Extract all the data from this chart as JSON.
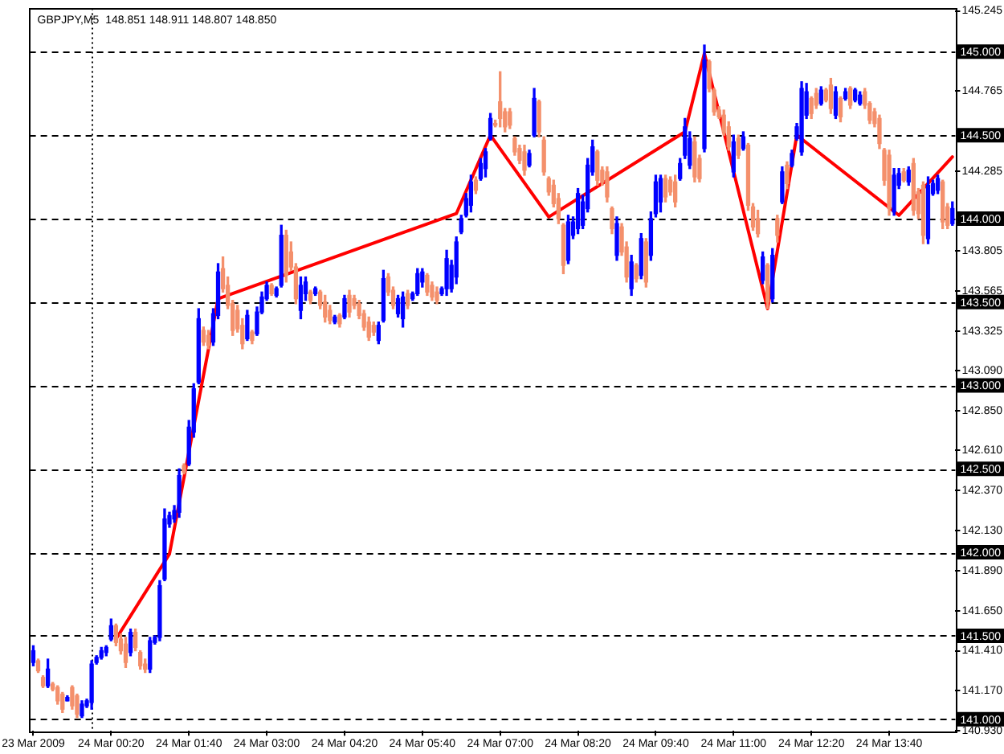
{
  "chart_data": {
    "type": "candlestick",
    "title": "GBPJPY,M5  148.851 148.911 148.807 148.850",
    "x": [
      "2009-03-23T23:00",
      "2009-03-23T23:05",
      "2009-03-23T23:10",
      "2009-03-23T23:15",
      "2009-03-23T23:20",
      "2009-03-23T23:25",
      "2009-03-23T23:30",
      "2009-03-23T23:35",
      "2009-03-23T23:40",
      "2009-03-23T23:45",
      "2009-03-23T23:50",
      "2009-03-23T23:55",
      "2009-03-24T00:00",
      "2009-03-24T00:05",
      "2009-03-24T00:10",
      "2009-03-24T00:15",
      "2009-03-24T00:20",
      "2009-03-24T00:25",
      "2009-03-24T00:30",
      "2009-03-24T00:35",
      "2009-03-24T00:40",
      "2009-03-24T00:45",
      "2009-03-24T00:50",
      "2009-03-24T00:55",
      "2009-03-24T01:00",
      "2009-03-24T01:05",
      "2009-03-24T01:10",
      "2009-03-24T01:15",
      "2009-03-24T01:20",
      "2009-03-24T01:25",
      "2009-03-24T01:30",
      "2009-03-24T01:35",
      "2009-03-24T01:40",
      "2009-03-24T01:45",
      "2009-03-24T01:50",
      "2009-03-24T01:55",
      "2009-03-24T02:00",
      "2009-03-24T02:05",
      "2009-03-24T02:10",
      "2009-03-24T02:15",
      "2009-03-24T02:20",
      "2009-03-24T02:25",
      "2009-03-24T02:30",
      "2009-03-24T02:35",
      "2009-03-24T02:40",
      "2009-03-24T02:45",
      "2009-03-24T02:50",
      "2009-03-24T02:55",
      "2009-03-24T03:00",
      "2009-03-24T03:05",
      "2009-03-24T03:10",
      "2009-03-24T03:15",
      "2009-03-24T03:20",
      "2009-03-24T03:25",
      "2009-03-24T03:30",
      "2009-03-24T03:35",
      "2009-03-24T03:40",
      "2009-03-24T03:45",
      "2009-03-24T03:50",
      "2009-03-24T03:55",
      "2009-03-24T04:00",
      "2009-03-24T04:05",
      "2009-03-24T04:10",
      "2009-03-24T04:15",
      "2009-03-24T04:20",
      "2009-03-24T04:25",
      "2009-03-24T04:30",
      "2009-03-24T04:35",
      "2009-03-24T04:40",
      "2009-03-24T04:45",
      "2009-03-24T04:50",
      "2009-03-24T04:55",
      "2009-03-24T05:00",
      "2009-03-24T05:05",
      "2009-03-24T05:10",
      "2009-03-24T05:15",
      "2009-03-24T05:20",
      "2009-03-24T05:25",
      "2009-03-24T05:30",
      "2009-03-24T05:35",
      "2009-03-24T05:40",
      "2009-03-24T05:45",
      "2009-03-24T05:50",
      "2009-03-24T05:55",
      "2009-03-24T06:00",
      "2009-03-24T06:05",
      "2009-03-24T06:10",
      "2009-03-24T06:15",
      "2009-03-24T06:20",
      "2009-03-24T06:25",
      "2009-03-24T06:30",
      "2009-03-24T06:35",
      "2009-03-24T06:40",
      "2009-03-24T06:45",
      "2009-03-24T06:50",
      "2009-03-24T06:55",
      "2009-03-24T07:00",
      "2009-03-24T07:05",
      "2009-03-24T07:10",
      "2009-03-24T07:15",
      "2009-03-24T07:20",
      "2009-03-24T07:25",
      "2009-03-24T07:30",
      "2009-03-24T07:35",
      "2009-03-24T07:40",
      "2009-03-24T07:45",
      "2009-03-24T07:50",
      "2009-03-24T07:55",
      "2009-03-24T08:00",
      "2009-03-24T08:05",
      "2009-03-24T08:10",
      "2009-03-24T08:15",
      "2009-03-24T08:20",
      "2009-03-24T08:25",
      "2009-03-24T08:30",
      "2009-03-24T08:35",
      "2009-03-24T08:40",
      "2009-03-24T08:45",
      "2009-03-24T08:50",
      "2009-03-24T08:55",
      "2009-03-24T09:00",
      "2009-03-24T09:05",
      "2009-03-24T09:10",
      "2009-03-24T09:15",
      "2009-03-24T09:20",
      "2009-03-24T09:25",
      "2009-03-24T09:30",
      "2009-03-24T09:35",
      "2009-03-24T09:40",
      "2009-03-24T09:45",
      "2009-03-24T09:50",
      "2009-03-24T09:55",
      "2009-03-24T10:00",
      "2009-03-24T10:05",
      "2009-03-24T10:10",
      "2009-03-24T10:15",
      "2009-03-24T10:20",
      "2009-03-24T10:25",
      "2009-03-24T10:30",
      "2009-03-24T10:35",
      "2009-03-24T10:40",
      "2009-03-24T10:45",
      "2009-03-24T10:50",
      "2009-03-24T10:55",
      "2009-03-24T11:00",
      "2009-03-24T11:05",
      "2009-03-24T11:10",
      "2009-03-24T11:15",
      "2009-03-24T11:20",
      "2009-03-24T11:25",
      "2009-03-24T11:30",
      "2009-03-24T11:35",
      "2009-03-24T11:40",
      "2009-03-24T11:45",
      "2009-03-24T11:50",
      "2009-03-24T11:55",
      "2009-03-24T12:00",
      "2009-03-24T12:05",
      "2009-03-24T12:10",
      "2009-03-24T12:15",
      "2009-03-24T12:20",
      "2009-03-24T12:25",
      "2009-03-24T12:30",
      "2009-03-24T12:35",
      "2009-03-24T12:40",
      "2009-03-24T12:45",
      "2009-03-24T12:50",
      "2009-03-24T12:55",
      "2009-03-24T13:00",
      "2009-03-24T13:05",
      "2009-03-24T13:10",
      "2009-03-24T13:15",
      "2009-03-24T13:20",
      "2009-03-24T13:25",
      "2009-03-24T13:30",
      "2009-03-24T13:35",
      "2009-03-24T13:40",
      "2009-03-24T13:45",
      "2009-03-24T13:50",
      "2009-03-24T13:55",
      "2009-03-24T14:00",
      "2009-03-24T14:05",
      "2009-03-24T14:10",
      "2009-03-24T14:15",
      "2009-03-24T14:20",
      "2009-03-24T14:25",
      "2009-03-24T14:30",
      "2009-03-24T14:35",
      "2009-03-24T14:40",
      "2009-03-24T14:45"
    ],
    "ohlc": [
      [
        141.34,
        141.44,
        141.32,
        141.41
      ],
      [
        141.35,
        141.36,
        141.28,
        141.29
      ],
      [
        141.25,
        141.26,
        141.19,
        141.2
      ],
      [
        141.2,
        141.36,
        141.19,
        141.3
      ],
      [
        141.21,
        141.22,
        141.17,
        141.18
      ],
      [
        141.19,
        141.2,
        141.09,
        141.11
      ],
      [
        141.15,
        141.16,
        141.04,
        141.06
      ],
      [
        141.11,
        141.14,
        141.11,
        141.13
      ],
      [
        141.19,
        141.2,
        141.06,
        141.08
      ],
      [
        141.14,
        141.15,
        141.01,
        141.03
      ],
      [
        141.02,
        141.11,
        141.01,
        141.09
      ],
      [
        141.08,
        141.12,
        141.07,
        141.11
      ],
      [
        141.1,
        141.35,
        141.06,
        141.33
      ],
      [
        141.34,
        141.38,
        141.33,
        141.37
      ],
      [
        141.37,
        141.43,
        141.36,
        141.41
      ],
      [
        141.4,
        141.44,
        141.38,
        141.43
      ],
      [
        141.48,
        141.6,
        141.47,
        141.56
      ],
      [
        141.56,
        141.57,
        141.44,
        141.46
      ],
      [
        141.48,
        141.51,
        141.39,
        141.41
      ],
      [
        141.45,
        141.49,
        141.31,
        141.34
      ],
      [
        141.4,
        141.54,
        141.38,
        141.52
      ],
      [
        141.52,
        141.54,
        141.41,
        141.43
      ],
      [
        141.4,
        141.41,
        141.3,
        141.32
      ],
      [
        141.33,
        141.36,
        141.28,
        141.3
      ],
      [
        141.3,
        141.49,
        141.28,
        141.47
      ],
      [
        141.46,
        141.5,
        141.45,
        141.49
      ],
      [
        141.49,
        141.83,
        141.47,
        141.8
      ],
      [
        141.84,
        142.26,
        141.83,
        142.2
      ],
      [
        142.17,
        142.24,
        142.15,
        142.22
      ],
      [
        142.2,
        142.28,
        142.18,
        142.25
      ],
      [
        142.24,
        142.5,
        142.21,
        142.46
      ],
      [
        142.52,
        142.53,
        142.47,
        142.48
      ],
      [
        142.53,
        142.79,
        142.52,
        142.75
      ],
      [
        142.72,
        143.01,
        142.69,
        142.98
      ],
      [
        143.02,
        143.46,
        143.01,
        143.4
      ],
      [
        143.33,
        143.35,
        143.24,
        143.26
      ],
      [
        143.3,
        143.33,
        143.22,
        143.24
      ],
      [
        143.26,
        143.46,
        143.24,
        143.43
      ],
      [
        143.42,
        143.73,
        143.4,
        143.68
      ],
      [
        143.7,
        143.77,
        143.56,
        143.58
      ],
      [
        143.6,
        143.65,
        143.46,
        143.48
      ],
      [
        143.49,
        143.51,
        143.3,
        143.33
      ],
      [
        143.45,
        143.48,
        143.32,
        143.34
      ],
      [
        143.36,
        143.4,
        143.22,
        143.25
      ],
      [
        143.28,
        143.45,
        143.27,
        143.42
      ],
      [
        143.32,
        143.33,
        143.25,
        143.27
      ],
      [
        143.31,
        143.47,
        143.3,
        143.44
      ],
      [
        143.44,
        143.56,
        143.43,
        143.53
      ],
      [
        143.52,
        143.62,
        143.51,
        143.6
      ],
      [
        143.6,
        143.61,
        143.54,
        143.55
      ],
      [
        143.54,
        143.59,
        143.53,
        143.58
      ],
      [
        143.6,
        143.96,
        143.59,
        143.9
      ],
      [
        143.9,
        143.93,
        143.62,
        143.66
      ],
      [
        143.8,
        143.86,
        143.69,
        143.71
      ],
      [
        143.71,
        143.73,
        143.49,
        143.52
      ],
      [
        143.45,
        143.65,
        143.4,
        143.6
      ],
      [
        143.55,
        143.65,
        143.51,
        143.62
      ],
      [
        143.56,
        143.57,
        143.49,
        143.51
      ],
      [
        143.55,
        143.59,
        143.54,
        143.58
      ],
      [
        143.56,
        143.57,
        143.46,
        143.48
      ],
      [
        143.5,
        143.54,
        143.38,
        143.41
      ],
      [
        143.45,
        143.48,
        143.37,
        143.39
      ],
      [
        143.38,
        143.42,
        143.37,
        143.41
      ],
      [
        143.42,
        143.43,
        143.35,
        143.37
      ],
      [
        143.41,
        143.54,
        143.4,
        143.52
      ],
      [
        143.54,
        143.57,
        143.41,
        143.44
      ],
      [
        143.52,
        143.54,
        143.46,
        143.48
      ],
      [
        143.49,
        143.51,
        143.4,
        143.42
      ],
      [
        143.43,
        143.45,
        143.33,
        143.35
      ],
      [
        143.38,
        143.41,
        143.27,
        143.29
      ],
      [
        143.36,
        143.38,
        143.3,
        143.32
      ],
      [
        143.27,
        143.38,
        143.25,
        143.36
      ],
      [
        143.39,
        143.69,
        143.38,
        143.64
      ],
      [
        143.65,
        143.67,
        143.54,
        143.56
      ],
      [
        143.57,
        143.59,
        143.46,
        143.48
      ],
      [
        143.43,
        143.54,
        143.41,
        143.52
      ],
      [
        143.4,
        143.56,
        143.35,
        143.53
      ],
      [
        143.55,
        143.57,
        143.46,
        143.48
      ],
      [
        143.52,
        143.56,
        143.51,
        143.55
      ],
      [
        143.55,
        143.7,
        143.54,
        143.67
      ],
      [
        143.62,
        143.7,
        143.59,
        143.68
      ],
      [
        143.66,
        143.67,
        143.54,
        143.56
      ],
      [
        143.6,
        143.62,
        143.51,
        143.53
      ],
      [
        143.56,
        143.59,
        143.49,
        143.51
      ],
      [
        143.55,
        143.59,
        143.54,
        143.58
      ],
      [
        143.58,
        143.81,
        143.54,
        143.76
      ],
      [
        143.58,
        143.75,
        143.56,
        143.72
      ],
      [
        143.65,
        143.89,
        143.61,
        143.86
      ],
      [
        143.92,
        144.02,
        143.91,
        144.0
      ],
      [
        144.02,
        144.15,
        144.01,
        144.12
      ],
      [
        144.08,
        144.26,
        144.04,
        144.22
      ],
      [
        144.23,
        144.25,
        144.15,
        144.17
      ],
      [
        144.24,
        144.36,
        144.23,
        144.33
      ],
      [
        144.3,
        144.42,
        144.25,
        144.4
      ],
      [
        144.48,
        144.63,
        144.47,
        144.6
      ],
      [
        144.57,
        144.59,
        144.55,
        144.56
      ],
      [
        144.7,
        144.88,
        144.55,
        144.6
      ],
      [
        144.64,
        144.66,
        144.52,
        144.55
      ],
      [
        144.64,
        144.66,
        144.54,
        144.56
      ],
      [
        144.48,
        144.49,
        144.38,
        144.4
      ],
      [
        144.42,
        144.44,
        144.33,
        144.35
      ],
      [
        144.4,
        144.44,
        144.26,
        144.29
      ],
      [
        144.32,
        144.41,
        144.31,
        144.39
      ],
      [
        144.5,
        144.78,
        144.49,
        144.72
      ],
      [
        144.7,
        144.71,
        144.49,
        144.52
      ],
      [
        144.47,
        144.49,
        144.26,
        144.28
      ],
      [
        144.24,
        144.25,
        144.14,
        144.16
      ],
      [
        144.2,
        144.23,
        144.07,
        144.09
      ],
      [
        144.12,
        144.15,
        143.97,
        144.0
      ],
      [
        143.96,
        143.97,
        143.67,
        143.72
      ],
      [
        143.75,
        144.02,
        143.73,
        143.98
      ],
      [
        143.9,
        144.01,
        143.88,
        143.98
      ],
      [
        143.94,
        144.18,
        143.91,
        144.15
      ],
      [
        143.96,
        144.14,
        143.94,
        144.1
      ],
      [
        144.06,
        144.36,
        144.04,
        144.32
      ],
      [
        144.28,
        144.47,
        144.26,
        144.43
      ],
      [
        144.4,
        144.41,
        144.2,
        144.23
      ],
      [
        144.29,
        144.31,
        144.2,
        144.22
      ],
      [
        144.28,
        144.31,
        144.1,
        144.13
      ],
      [
        144.06,
        144.07,
        143.91,
        143.94
      ],
      [
        143.78,
        144.01,
        143.75,
        143.97
      ],
      [
        143.95,
        143.97,
        143.78,
        143.8
      ],
      [
        143.83,
        143.86,
        143.62,
        143.65
      ],
      [
        143.58,
        143.78,
        143.54,
        143.74
      ],
      [
        143.72,
        143.73,
        143.62,
        143.64
      ],
      [
        143.66,
        143.91,
        143.64,
        143.88
      ],
      [
        143.86,
        143.88,
        143.59,
        143.62
      ],
      [
        143.78,
        144.04,
        143.75,
        144.0
      ],
      [
        144.03,
        144.26,
        144.01,
        144.22
      ],
      [
        144.1,
        144.26,
        144.04,
        144.24
      ],
      [
        144.24,
        144.26,
        144.1,
        144.13
      ],
      [
        144.23,
        144.25,
        144.14,
        144.16
      ],
      [
        144.22,
        144.26,
        144.07,
        144.1
      ],
      [
        144.24,
        144.36,
        144.23,
        144.33
      ],
      [
        144.38,
        144.6,
        144.36,
        144.55
      ],
      [
        144.32,
        144.52,
        144.3,
        144.48
      ],
      [
        144.46,
        144.49,
        144.22,
        144.25
      ],
      [
        144.36,
        144.38,
        144.22,
        144.24
      ],
      [
        144.42,
        145.04,
        144.4,
        144.95
      ],
      [
        144.94,
        144.95,
        144.76,
        144.78
      ],
      [
        144.77,
        144.78,
        144.62,
        144.64
      ],
      [
        144.65,
        144.67,
        144.6,
        144.61
      ],
      [
        144.62,
        144.65,
        144.5,
        144.52
      ],
      [
        144.55,
        144.58,
        144.41,
        144.43
      ],
      [
        144.28,
        144.5,
        144.25,
        144.46
      ],
      [
        144.48,
        144.5,
        144.36,
        144.38
      ],
      [
        144.42,
        144.52,
        144.41,
        144.49
      ],
      [
        144.44,
        144.45,
        144.05,
        144.08
      ],
      [
        144.07,
        144.09,
        143.93,
        143.95
      ],
      [
        144.0,
        144.05,
        143.89,
        143.91
      ],
      [
        143.63,
        143.8,
        143.61,
        143.77
      ],
      [
        143.72,
        143.73,
        143.46,
        143.5
      ],
      [
        143.52,
        143.82,
        143.5,
        143.78
      ],
      [
        144.0,
        144.02,
        143.86,
        143.9
      ],
      [
        144.1,
        144.31,
        144.09,
        144.28
      ],
      [
        144.32,
        144.34,
        144.18,
        144.21
      ],
      [
        144.32,
        144.41,
        144.31,
        144.39
      ],
      [
        144.48,
        144.57,
        144.47,
        144.55
      ],
      [
        144.4,
        144.82,
        144.38,
        144.78
      ],
      [
        144.62,
        144.81,
        144.6,
        144.76
      ],
      [
        144.72,
        144.73,
        144.6,
        144.63
      ],
      [
        144.75,
        144.78,
        144.66,
        144.68
      ],
      [
        144.69,
        144.79,
        144.68,
        144.77
      ],
      [
        144.77,
        144.78,
        144.7,
        144.71
      ],
      [
        144.8,
        144.84,
        144.63,
        144.66
      ],
      [
        144.62,
        144.79,
        144.6,
        144.76
      ],
      [
        144.72,
        144.73,
        144.58,
        144.61
      ],
      [
        144.72,
        144.78,
        144.71,
        144.76
      ],
      [
        144.78,
        144.79,
        144.66,
        144.68
      ],
      [
        144.71,
        144.78,
        144.7,
        144.77
      ],
      [
        144.69,
        144.76,
        144.68,
        144.74
      ],
      [
        144.76,
        144.78,
        144.66,
        144.68
      ],
      [
        144.69,
        144.7,
        144.57,
        144.59
      ],
      [
        144.64,
        144.66,
        144.55,
        144.57
      ],
      [
        144.6,
        144.62,
        144.42,
        144.45
      ],
      [
        144.41,
        144.42,
        144.2,
        144.23
      ],
      [
        144.38,
        144.41,
        144.02,
        144.06
      ],
      [
        144.04,
        144.3,
        144.02,
        144.26
      ],
      [
        144.2,
        144.3,
        144.18,
        144.27
      ],
      [
        144.28,
        144.3,
        144.22,
        144.23
      ],
      [
        144.22,
        144.31,
        144.2,
        144.29
      ],
      [
        144.33,
        144.36,
        144.02,
        144.05
      ],
      [
        144.16,
        144.18,
        144.0,
        144.03
      ],
      [
        144.2,
        144.22,
        143.85,
        143.9
      ],
      [
        143.88,
        144.25,
        143.85,
        144.2
      ],
      [
        144.15,
        144.23,
        144.14,
        144.21
      ],
      [
        144.17,
        144.26,
        144.15,
        144.24
      ],
      [
        144.22,
        144.23,
        143.94,
        143.98
      ],
      [
        144.07,
        144.09,
        143.94,
        143.96
      ],
      [
        143.97,
        144.1,
        143.96,
        144.06
      ]
    ],
    "colors": [
      "#0000ff",
      "#f4906c",
      "#f4906c",
      "#0000ff",
      "#f4906c",
      "#f4906c",
      "#f4906c",
      "#0000ff",
      "#f4906c",
      "#f4906c",
      "#0000ff",
      "#0000ff",
      "#0000ff",
      "#0000ff",
      "#0000ff",
      "#0000ff",
      "#0000ff",
      "#f4906c",
      "#f4906c",
      "#f4906c",
      "#0000ff",
      "#f4906c",
      "#f4906c",
      "#f4906c",
      "#0000ff",
      "#0000ff",
      "#0000ff",
      "#0000ff",
      "#0000ff",
      "#0000ff",
      "#0000ff",
      "#f4906c",
      "#0000ff",
      "#0000ff",
      "#0000ff",
      "#f4906c",
      "#f4906c",
      "#0000ff",
      "#0000ff",
      "#f4906c",
      "#f4906c",
      "#f4906c",
      "#f4906c",
      "#f4906c",
      "#0000ff",
      "#f4906c",
      "#0000ff",
      "#0000ff",
      "#0000ff",
      "#f4906c",
      "#0000ff",
      "#0000ff",
      "#f4906c",
      "#f4906c",
      "#f4906c",
      "#0000ff",
      "#0000ff",
      "#f4906c",
      "#0000ff",
      "#f4906c",
      "#f4906c",
      "#f4906c",
      "#0000ff",
      "#f4906c",
      "#0000ff",
      "#f4906c",
      "#f4906c",
      "#f4906c",
      "#f4906c",
      "#f4906c",
      "#f4906c",
      "#0000ff",
      "#0000ff",
      "#f4906c",
      "#f4906c",
      "#0000ff",
      "#0000ff",
      "#f4906c",
      "#0000ff",
      "#0000ff",
      "#0000ff",
      "#f4906c",
      "#f4906c",
      "#f4906c",
      "#0000ff",
      "#0000ff",
      "#0000ff",
      "#0000ff",
      "#0000ff",
      "#0000ff",
      "#0000ff",
      "#f4906c",
      "#0000ff",
      "#0000ff",
      "#0000ff",
      "#f4906c",
      "#f4906c",
      "#f4906c",
      "#f4906c",
      "#f4906c",
      "#f4906c",
      "#f4906c",
      "#0000ff",
      "#0000ff",
      "#f4906c",
      "#f4906c",
      "#f4906c",
      "#f4906c",
      "#f4906c",
      "#f4906c",
      "#0000ff",
      "#0000ff",
      "#0000ff",
      "#0000ff",
      "#0000ff",
      "#0000ff",
      "#f4906c",
      "#f4906c",
      "#f4906c",
      "#f4906c",
      "#0000ff",
      "#f4906c",
      "#f4906c",
      "#0000ff",
      "#f4906c",
      "#0000ff",
      "#f4906c",
      "#0000ff",
      "#0000ff",
      "#0000ff",
      "#f4906c",
      "#f4906c",
      "#f4906c",
      "#0000ff",
      "#0000ff",
      "#0000ff",
      "#f4906c",
      "#f4906c",
      "#0000ff",
      "#f4906c",
      "#f4906c",
      "#f4906c",
      "#f4906c",
      "#f4906c",
      "#0000ff",
      "#f4906c",
      "#0000ff",
      "#f4906c",
      "#f4906c",
      "#f4906c",
      "#0000ff",
      "#f4906c",
      "#0000ff",
      "#f4906c",
      "#0000ff",
      "#f4906c",
      "#0000ff",
      "#0000ff",
      "#0000ff",
      "#0000ff",
      "#f4906c",
      "#f4906c",
      "#0000ff",
      "#f4906c",
      "#f4906c",
      "#0000ff",
      "#f4906c",
      "#0000ff",
      "#f4906c",
      "#0000ff",
      "#0000ff",
      "#f4906c",
      "#f4906c",
      "#f4906c",
      "#f4906c",
      "#f4906c",
      "#f4906c",
      "#0000ff",
      "#0000ff",
      "#f4906c",
      "#0000ff",
      "#f4906c",
      "#f4906c",
      "#f4906c",
      "#0000ff",
      "#0000ff",
      "#0000ff",
      "#f4906c",
      "#f4906c",
      "#0000ff"
    ],
    "series": [
      {
        "type": "line",
        "color": "#ff0000",
        "x": [
          "2009-03-24T00:25",
          "2009-03-24T01:20",
          "2009-03-24T02:10",
          "2009-03-24T06:15",
          "2009-03-24T06:50",
          "2009-03-24T07:50",
          "2009-03-24T10:10",
          "2009-03-24T10:30",
          "2009-03-24T11:35",
          "2009-03-24T12:05",
          "2009-03-24T13:50",
          "2009-03-24T14:45"
        ],
        "values": [
          141.48,
          141.99,
          143.52,
          144.03,
          144.5,
          144.01,
          144.52,
          144.99,
          143.46,
          144.5,
          144.02,
          144.37
        ]
      }
    ],
    "xlim": [
      "2009-03-23T22:56",
      "2009-03-24T14:48"
    ],
    "xticks": [
      {
        "value": "2009-03-23T23:00",
        "label": "23 Mar 2009"
      },
      {
        "value": "2009-03-24T00:20",
        "label": "24 Mar 00:20"
      },
      {
        "value": "2009-03-24T01:40",
        "label": "24 Mar 01:40"
      },
      {
        "value": "2009-03-24T03:00",
        "label": "24 Mar 03:00"
      },
      {
        "value": "2009-03-24T04:20",
        "label": "24 Mar 04:20"
      },
      {
        "value": "2009-03-24T05:40",
        "label": "24 Mar 05:40"
      },
      {
        "value": "2009-03-24T07:00",
        "label": "24 Mar 07:00"
      },
      {
        "value": "2009-03-24T08:20",
        "label": "24 Mar 08:20"
      },
      {
        "value": "2009-03-24T09:40",
        "label": "24 Mar 09:40"
      },
      {
        "value": "2009-03-24T11:00",
        "label": "24 Mar 11:00"
      },
      {
        "value": "2009-03-24T12:20",
        "label": "24 Mar 12:20"
      },
      {
        "value": "2009-03-24T13:40",
        "label": "24 Mar 13:40"
      }
    ],
    "ylim": [
      140.93,
      145.26
    ],
    "yticks": [
      145.245,
      144.765,
      144.285,
      143.805,
      143.565,
      143.325,
      {
        "value": 143.09,
        "label": "143.090"
      },
      {
        "value": 142.85,
        "label": "142.850"
      },
      {
        "value": 142.61,
        "label": "142.610"
      },
      {
        "value": 142.37,
        "label": "142.370"
      },
      {
        "value": 142.13,
        "label": "142.130"
      },
      {
        "value": 141.89,
        "label": "141.890"
      },
      {
        "value": 141.65,
        "label": "141.650"
      },
      {
        "value": 141.41,
        "label": "141.410"
      },
      {
        "value": 141.17,
        "label": "141.170"
      },
      {
        "value": 140.93,
        "label": "140.930"
      }
    ],
    "ref_lines": [
      {
        "axis": "y",
        "value": 145.0,
        "label": "145.000",
        "color": "#000000",
        "line_style": "dashed"
      },
      {
        "axis": "y",
        "value": 144.5,
        "label": "144.500",
        "color": "#000000",
        "line_style": "dashed"
      },
      {
        "axis": "y",
        "value": 144.0,
        "label": "144.000",
        "color": "#000000",
        "line_style": "dashed"
      },
      {
        "axis": "y",
        "value": 143.5,
        "label": "143.500",
        "color": "#000000",
        "line_style": "dashed"
      },
      {
        "axis": "y",
        "value": 143.0,
        "label": "143.000",
        "color": "#000000",
        "line_style": "dashed"
      },
      {
        "axis": "y",
        "value": 142.5,
        "label": "142.500",
        "color": "#000000",
        "line_style": "dashed"
      },
      {
        "axis": "y",
        "value": 142.0,
        "label": "142.000",
        "color": "#000000",
        "line_style": "dashed"
      },
      {
        "axis": "y",
        "value": 141.5,
        "label": "141.500",
        "color": "#000000",
        "line_style": "dashed"
      },
      {
        "axis": "y",
        "value": 141.0,
        "label": "141.000",
        "color": "#000000",
        "line_style": "dashed"
      },
      {
        "axis": "x",
        "value": "2009-03-24T00:00",
        "color": "#000000",
        "line_style": "dotted"
      }
    ]
  }
}
